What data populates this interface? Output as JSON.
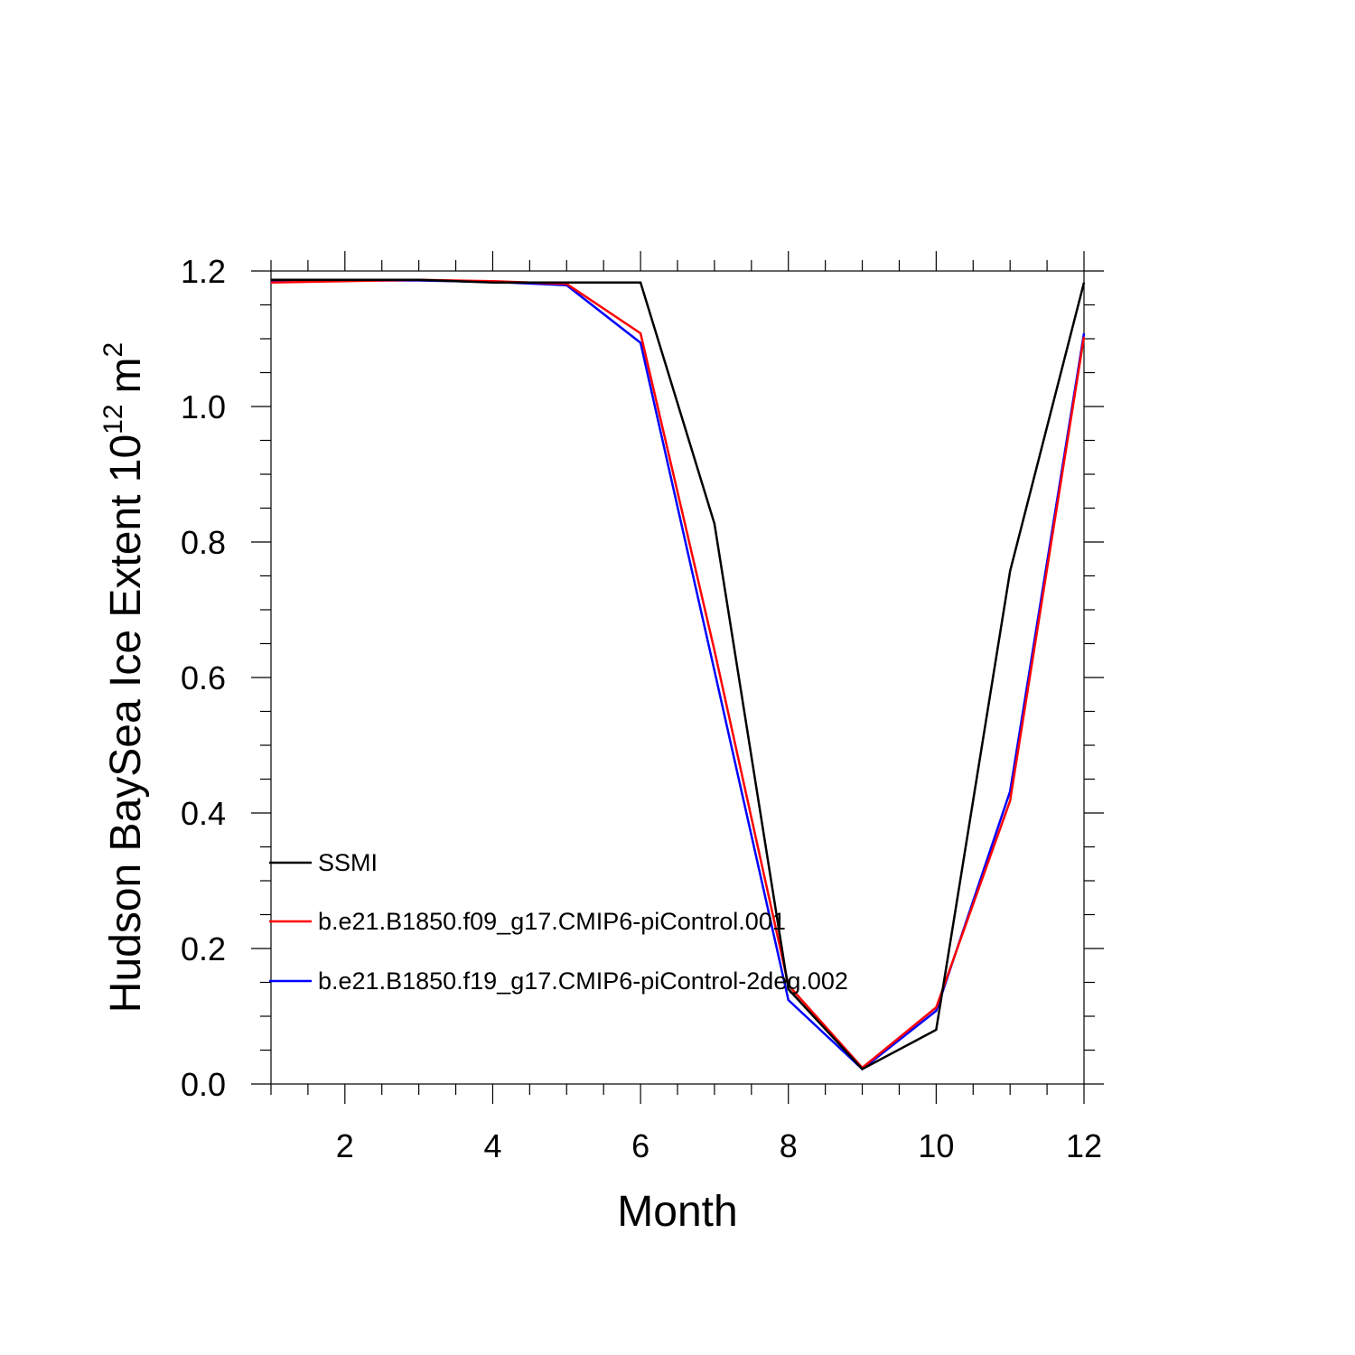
{
  "chart_data": {
    "type": "line",
    "xlabel": "Month",
    "ylabel": "Hudson BaySea Ice Extent 10",
    "ylabel_exponent": "12",
    "ylabel_unit": "m",
    "ylabel_unit_exponent": "2",
    "xlim": [
      1,
      12
    ],
    "ylim": [
      0,
      1.2
    ],
    "x_ticks": [
      "2",
      "4",
      "6",
      "8",
      "10",
      "12"
    ],
    "y_ticks": [
      "0.0",
      "0.2",
      "0.4",
      "0.6",
      "0.8",
      "1.0",
      "1.2"
    ],
    "grid": false,
    "legend_position": "lower-left",
    "x": [
      1,
      2,
      3,
      4,
      5,
      6,
      7,
      8,
      9,
      10,
      11,
      12
    ],
    "series": [
      {
        "name": "SSMI",
        "color": "#000000",
        "values": [
          1.187,
          1.187,
          1.187,
          1.183,
          1.183,
          1.183,
          0.827,
          0.14,
          0.022,
          0.08,
          0.757,
          1.183
        ]
      },
      {
        "name": "b.e21.B1850.f09_g17.CMIP6-piControl.001",
        "color": "#ff0000",
        "values": [
          1.183,
          1.185,
          1.187,
          1.185,
          1.181,
          1.108,
          0.64,
          0.146,
          0.024,
          0.113,
          0.418,
          1.103
        ]
      },
      {
        "name": "b.e21.B1850.f19_g17.CMIP6-piControl-2deg.002",
        "color": "#0000ff",
        "values": [
          1.185,
          1.186,
          1.186,
          1.184,
          1.179,
          1.094,
          0.61,
          0.124,
          0.022,
          0.108,
          0.432,
          1.108
        ]
      }
    ]
  }
}
